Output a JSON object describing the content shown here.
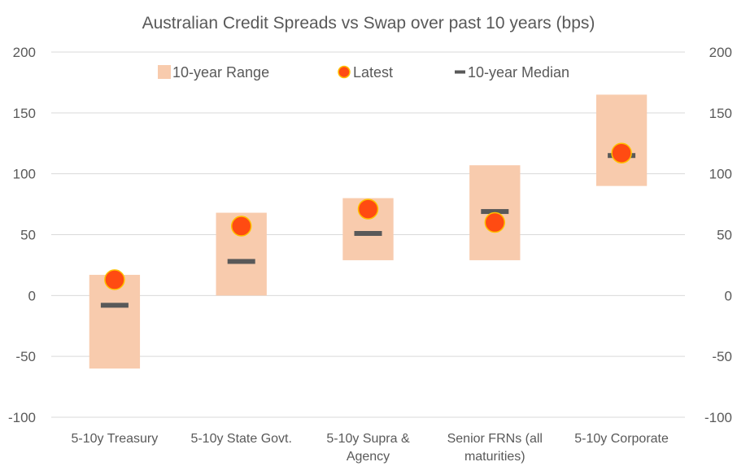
{
  "chart_data": {
    "type": "range",
    "title": "Australian Credit Spreads vs Swap over past 10 years (bps)",
    "xlabel": "",
    "ylabel": "",
    "ylim": [
      -100,
      200
    ],
    "yticks": [
      200,
      150,
      100,
      50,
      0,
      -50,
      -100
    ],
    "grid": true,
    "dual_y_axis": true,
    "legend_position": "top",
    "categories": [
      [
        "5-10y Treasury"
      ],
      [
        "5-10y State Govt."
      ],
      [
        "5-10y Supra &",
        "Agency"
      ],
      [
        "Senior FRNs (all",
        "maturities)"
      ],
      [
        "5-10y Corporate"
      ]
    ],
    "series": [
      {
        "name": "10-year Range",
        "kind": "range",
        "color": "#f8cbad",
        "low": [
          -60,
          0,
          29,
          29,
          90
        ],
        "high": [
          17,
          68,
          80,
          107,
          165
        ]
      },
      {
        "name": "Latest",
        "kind": "marker",
        "color": "#ff4b12",
        "edge": "#ffc000",
        "values": [
          13,
          57,
          71,
          60,
          117
        ]
      },
      {
        "name": "10-year Median",
        "kind": "dash",
        "color": "#595959",
        "values": [
          -8,
          28,
          51,
          69,
          115
        ]
      }
    ]
  }
}
